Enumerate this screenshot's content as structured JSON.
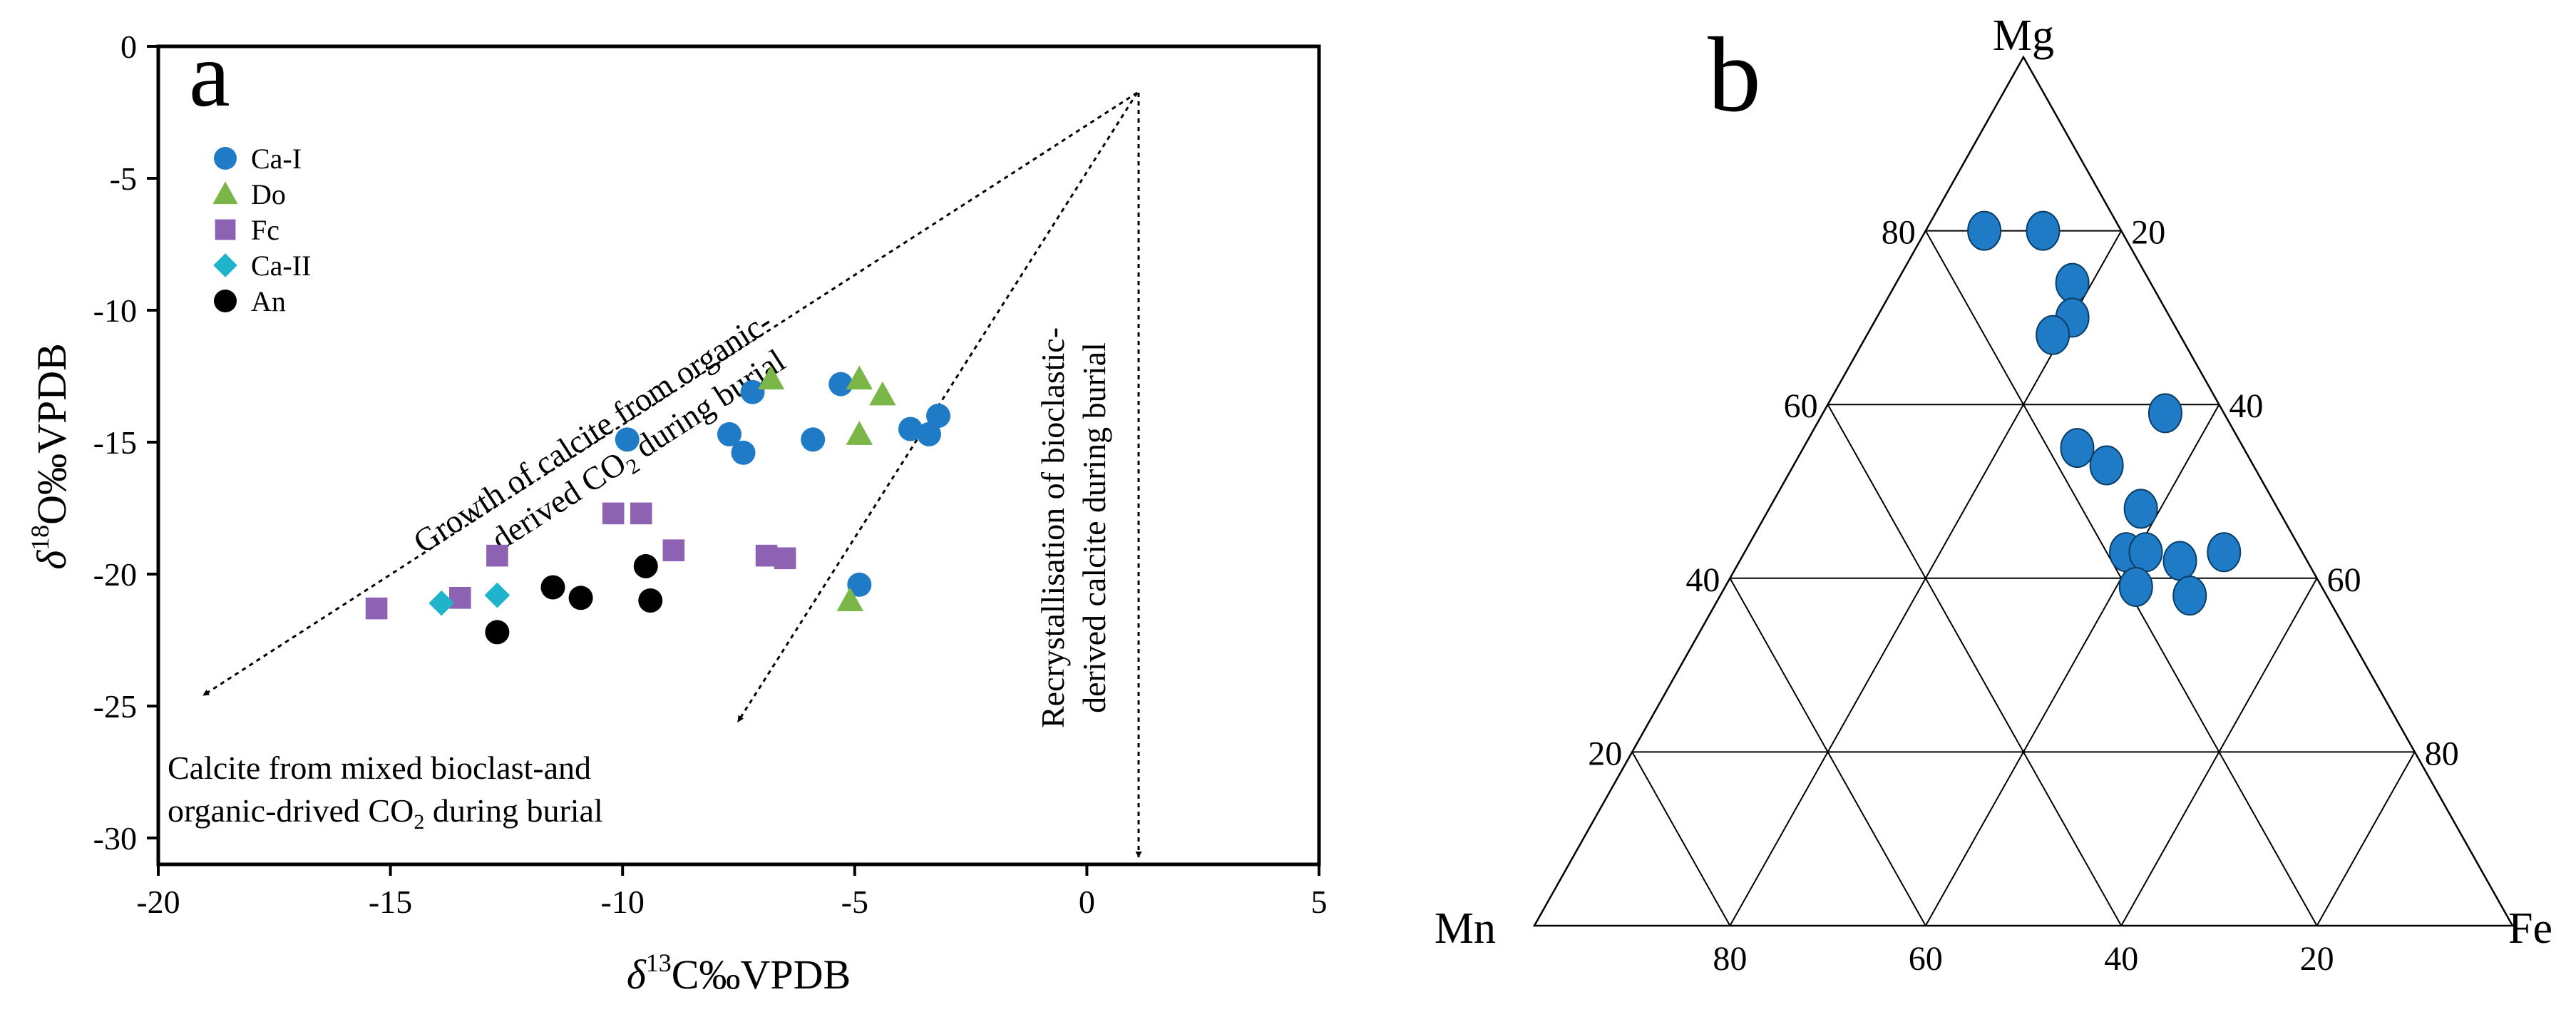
{
  "panels": {
    "a": "a",
    "b": "b"
  },
  "chart_data": [
    {
      "type": "scatter",
      "panel": "a",
      "title": "",
      "xlabel": {
        "delta": "δ",
        "sup": "13",
        "rest": "C‰VPDB"
      },
      "ylabel": {
        "delta": "δ",
        "sup": "18",
        "rest": "O‰VPDB"
      },
      "xlim": [
        -20,
        5
      ],
      "ylim": [
        -31,
        0
      ],
      "xticks": [
        -20,
        -15,
        -10,
        -5,
        0,
        5
      ],
      "yticks": [
        0,
        -5,
        -10,
        -15,
        -20,
        -25,
        -30
      ],
      "legend_position": "top-left",
      "series": [
        {
          "name": "Ca-I",
          "marker": "circle",
          "color": "#1f7bc6",
          "points": [
            [
              -9.9,
              -14.9
            ],
            [
              -7.7,
              -14.7
            ],
            [
              -7.4,
              -15.4
            ],
            [
              -7.2,
              -13.1
            ],
            [
              -5.9,
              -14.9
            ],
            [
              -5.3,
              -12.8
            ],
            [
              -3.8,
              -14.5
            ],
            [
              -3.4,
              -14.7
            ],
            [
              -3.2,
              -14.0
            ],
            [
              -4.9,
              -20.4
            ]
          ]
        },
        {
          "name": "Do",
          "marker": "triangle",
          "color": "#7ab648",
          "points": [
            [
              -6.8,
              -12.6
            ],
            [
              -4.9,
              -12.6
            ],
            [
              -4.4,
              -13.2
            ],
            [
              -4.9,
              -14.7
            ],
            [
              -5.1,
              -21.0
            ]
          ]
        },
        {
          "name": "Fc",
          "marker": "square",
          "color": "#8e62b3",
          "points": [
            [
              -15.3,
              -21.3
            ],
            [
              -13.5,
              -20.9
            ],
            [
              -12.7,
              -19.3
            ],
            [
              -10.2,
              -17.7
            ],
            [
              -9.6,
              -17.7
            ],
            [
              -8.9,
              -19.1
            ],
            [
              -6.9,
              -19.3
            ],
            [
              -6.5,
              -19.4
            ]
          ]
        },
        {
          "name": "Ca-II",
          "marker": "diamond",
          "color": "#1fb4cc",
          "points": [
            [
              -13.9,
              -21.1
            ],
            [
              -12.7,
              -20.8
            ]
          ]
        },
        {
          "name": "An",
          "marker": "circle",
          "color": "#000000",
          "points": [
            [
              -12.7,
              -22.2
            ],
            [
              -11.5,
              -20.5
            ],
            [
              -10.9,
              -20.9
            ],
            [
              -9.5,
              -19.7
            ],
            [
              -9.4,
              -21.0
            ]
          ]
        }
      ],
      "annotations": {
        "growth": {
          "line1": "Growth of calcite from organic-",
          "line2_pre": "derived CO",
          "line2_sub": "2",
          "line2_post": " during burial"
        },
        "recryst": {
          "line1": "Recrystallisation of bioclastic-",
          "line2": "derived calcite during burial"
        },
        "mixed": {
          "line1": "Calcite from mixed bioclast-and",
          "line2_pre": "organic-drived CO",
          "line2_sub": "2",
          "line2_post": " during burial"
        }
      }
    },
    {
      "type": "ternary",
      "panel": "b",
      "vertices": {
        "top": "Mg",
        "left": "Mn",
        "right": "Fe"
      },
      "left_ticks": [
        "80",
        "60",
        "40",
        "20"
      ],
      "right_ticks": [
        "20",
        "40",
        "60",
        "80"
      ],
      "bottom_ticks": [
        "80",
        "60",
        "40",
        "20"
      ],
      "point_color": "#1f7bc6",
      "points": [
        {
          "Mg": 80,
          "Mn": 14,
          "Fe": 6
        },
        {
          "Mg": 80,
          "Mn": 8,
          "Fe": 12
        },
        {
          "Mg": 74,
          "Mn": 8,
          "Fe": 18
        },
        {
          "Mg": 70,
          "Mn": 10,
          "Fe": 20
        },
        {
          "Mg": 68,
          "Mn": 13,
          "Fe": 19
        },
        {
          "Mg": 59,
          "Mn": 6,
          "Fe": 35
        },
        {
          "Mg": 55,
          "Mn": 17,
          "Fe": 28
        },
        {
          "Mg": 53,
          "Mn": 15,
          "Fe": 32
        },
        {
          "Mg": 48,
          "Mn": 14,
          "Fe": 38
        },
        {
          "Mg": 43,
          "Mn": 18,
          "Fe": 39
        },
        {
          "Mg": 43,
          "Mn": 16,
          "Fe": 41
        },
        {
          "Mg": 42,
          "Mn": 13,
          "Fe": 45
        },
        {
          "Mg": 43,
          "Mn": 8,
          "Fe": 49
        },
        {
          "Mg": 39,
          "Mn": 19,
          "Fe": 42
        },
        {
          "Mg": 38,
          "Mn": 14,
          "Fe": 48
        }
      ]
    }
  ]
}
